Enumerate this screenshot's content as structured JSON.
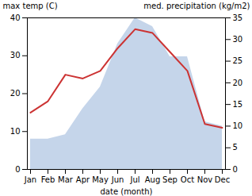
{
  "chart_data": {
    "type": "line",
    "categories": [
      "Jan",
      "Feb",
      "Mar",
      "Apr",
      "May",
      "Jun",
      "Jul",
      "Aug",
      "Sep",
      "Oct",
      "Nov",
      "Dec"
    ],
    "xlabel": "date (month)",
    "ylabel": "max temp (C)",
    "y2label": "med. precipitation (kg/m2)",
    "ylim": [
      0,
      40
    ],
    "yticks": [
      0,
      10,
      20,
      30,
      40
    ],
    "y2lim": [
      0,
      35
    ],
    "y2ticks": [
      0,
      5,
      10,
      15,
      20,
      25,
      30,
      35
    ],
    "grid": false,
    "series": [
      {
        "type": "area",
        "axis": "y2",
        "color": "#c5d5ea",
        "values": [
          7,
          7,
          8,
          14,
          19,
          29,
          35,
          33,
          26,
          26,
          11,
          10
        ]
      },
      {
        "type": "line",
        "color": "#cc3333",
        "values": [
          15,
          18,
          25,
          24,
          26,
          32,
          37,
          36,
          31,
          26,
          12,
          11
        ]
      }
    ]
  }
}
